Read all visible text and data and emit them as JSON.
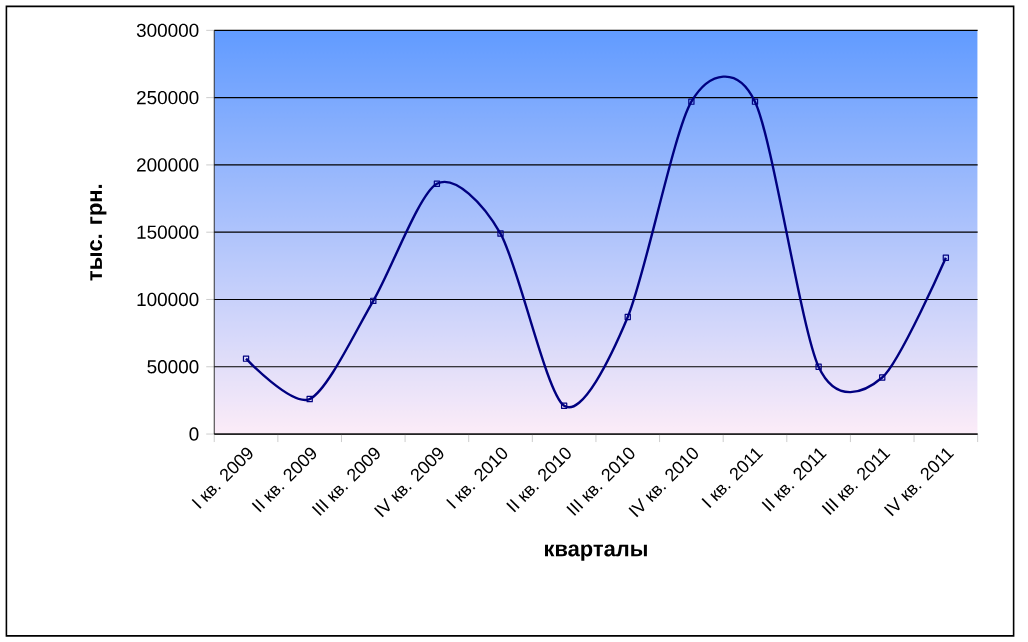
{
  "chart_data": {
    "type": "line",
    "xlabel": "кварталы",
    "ylabel": "тыс. грн.",
    "categories": [
      "I кв. 2009",
      "II кв. 2009",
      "III кв. 2009",
      "IV кв. 2009",
      "I кв. 2010",
      "II кв. 2010",
      "III кв. 2010",
      "IV кв. 2010",
      "I кв. 2011",
      "II кв. 2011",
      "III кв. 2011",
      "IV кв. 2011"
    ],
    "series": [
      {
        "color": "#000080",
        "values": [
          56000,
          26000,
          99000,
          186000,
          149000,
          21000,
          87000,
          247000,
          247000,
          50000,
          42000,
          131000
        ]
      }
    ],
    "ylim": [
      0,
      300000
    ],
    "yticks": [
      0,
      50000,
      100000,
      150000,
      200000,
      250000,
      300000
    ],
    "grid": "y",
    "marker": "square",
    "line_style": "solid"
  }
}
